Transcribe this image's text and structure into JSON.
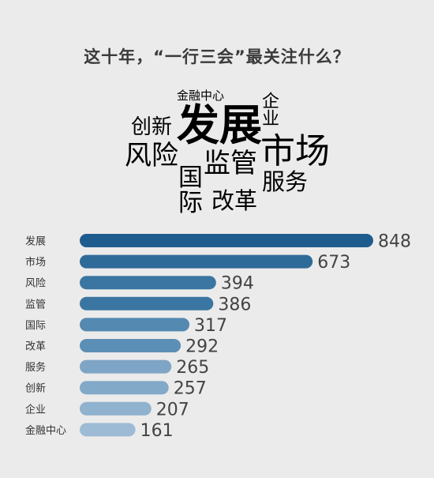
{
  "title": "这十年，“一行三会”最关注什么？",
  "word_cloud": [
    {
      "text": "金融中心",
      "color": "#a07e5e"
    },
    {
      "text": "企业",
      "color": "#9a7a58"
    },
    {
      "text": "创新",
      "color": "#9fb6c4"
    },
    {
      "text": "发展",
      "color": "#1f4f78"
    },
    {
      "text": "风险",
      "color": "#285880"
    },
    {
      "text": "市场",
      "color": "#2f6088"
    },
    {
      "text": "监管",
      "color": "#336590"
    },
    {
      "text": "国",
      "color": "#6f93ad"
    },
    {
      "text": "际",
      "color": "#6f93ad"
    },
    {
      "text": "改革",
      "color": "#8a6c50"
    },
    {
      "text": "服务",
      "color": "#8fa9bb"
    }
  ],
  "chart_data": {
    "type": "bar",
    "orientation": "horizontal",
    "categories": [
      "发展",
      "市场",
      "风险",
      "监管",
      "国际",
      "改革",
      "服务",
      "创新",
      "企业",
      "金融中心"
    ],
    "values": [
      848,
      673,
      394,
      386,
      317,
      292,
      265,
      257,
      207,
      161
    ],
    "colors": [
      "#1f5c8e",
      "#2f6b99",
      "#3b76a2",
      "#3b76a2",
      "#5489b1",
      "#5c8fb5",
      "#7ea5c5",
      "#83a9c8",
      "#8fb2ce",
      "#9dbbd4"
    ],
    "xlim": [
      0,
      848
    ],
    "grid": false,
    "legend": "none"
  }
}
